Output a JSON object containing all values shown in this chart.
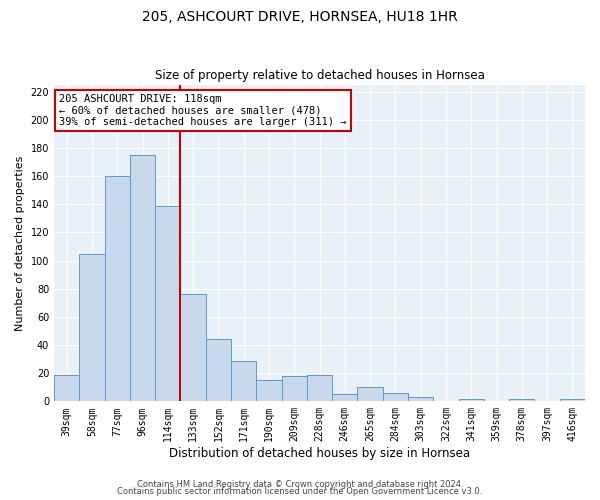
{
  "title": "205, ASHCOURT DRIVE, HORNSEA, HU18 1HR",
  "subtitle": "Size of property relative to detached houses in Hornsea",
  "xlabel": "Distribution of detached houses by size in Hornsea",
  "ylabel": "Number of detached properties",
  "categories": [
    "39sqm",
    "58sqm",
    "77sqm",
    "96sqm",
    "114sqm",
    "133sqm",
    "152sqm",
    "171sqm",
    "190sqm",
    "209sqm",
    "228sqm",
    "246sqm",
    "265sqm",
    "284sqm",
    "303sqm",
    "322sqm",
    "341sqm",
    "359sqm",
    "378sqm",
    "397sqm",
    "416sqm"
  ],
  "values": [
    19,
    105,
    160,
    175,
    139,
    76,
    44,
    29,
    15,
    18,
    19,
    5,
    10,
    6,
    3,
    0,
    2,
    0,
    2,
    0,
    2
  ],
  "bar_color": "#c8d9ed",
  "bar_edge_color": "#5b9bd5",
  "vline_x_index": 4.5,
  "annotation_line1": "205 ASHCOURT DRIVE: 118sqm",
  "annotation_line2": "← 60% of detached houses are smaller (478)",
  "annotation_line3": "39% of semi-detached houses are larger (311) →",
  "annotation_box_color": "#ffffff",
  "annotation_box_edge": "#cc0000",
  "vline_color": "#cc0000",
  "ylim": [
    0,
    225
  ],
  "yticks": [
    0,
    20,
    40,
    60,
    80,
    100,
    120,
    140,
    160,
    180,
    200,
    220
  ],
  "footer1": "Contains HM Land Registry data © Crown copyright and database right 2024.",
  "footer2": "Contains public sector information licensed under the Open Government Licence v3.0.",
  "plot_bg_color": "#e8f0f8",
  "fig_bg_color": "#ffffff",
  "grid_color": "#ffffff",
  "title_fontsize": 10,
  "subtitle_fontsize": 8.5,
  "ylabel_fontsize": 8,
  "xlabel_fontsize": 8.5,
  "tick_fontsize": 7,
  "footer_fontsize": 6,
  "annotation_fontsize": 7.5
}
